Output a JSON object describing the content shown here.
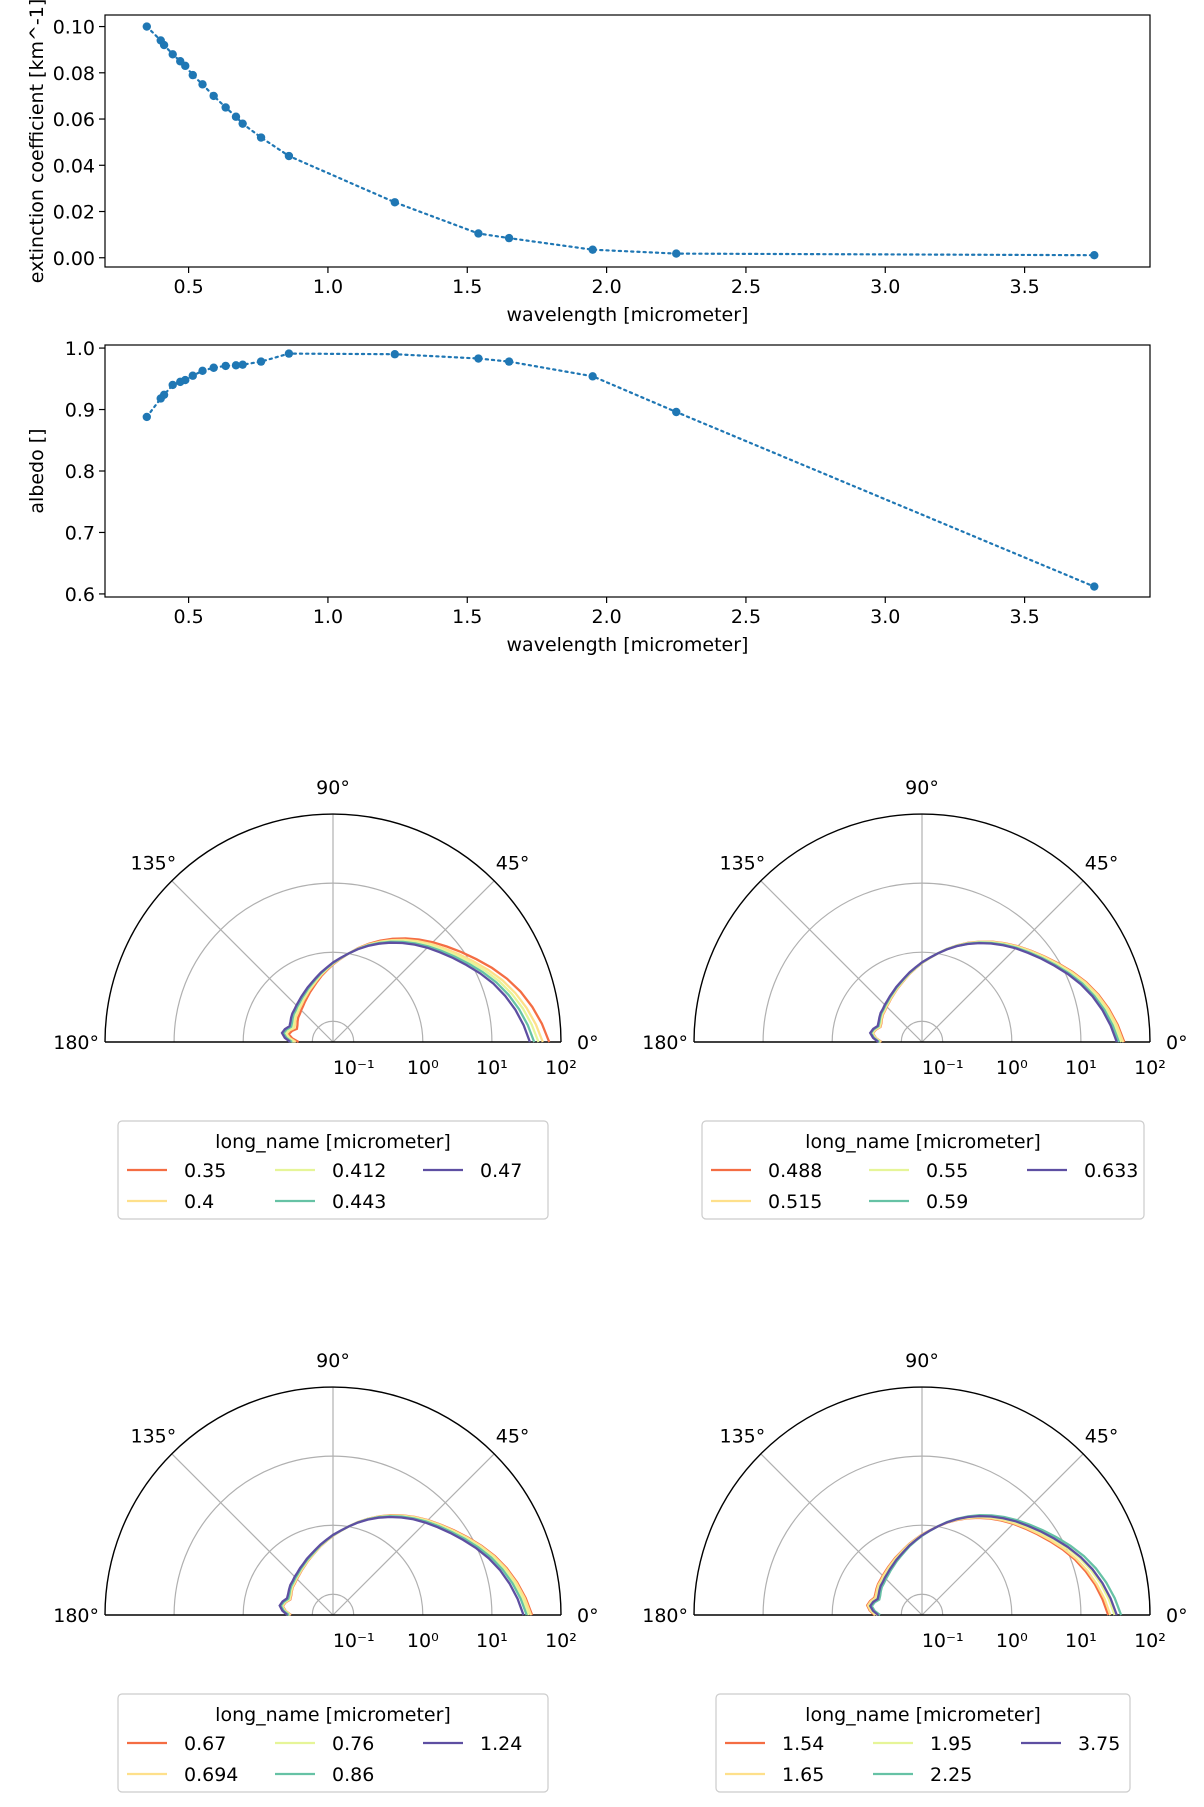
{
  "chart_data": [
    {
      "type": "line",
      "xlabel": "wavelength [micrometer]",
      "ylabel": "extinction coefficient [km^-1]",
      "xlim": [
        0.2,
        3.95
      ],
      "ylim": [
        -0.004,
        0.105
      ],
      "xticks": [
        0.5,
        1.0,
        1.5,
        2.0,
        2.5,
        3.0,
        3.5
      ],
      "xtick_labels": [
        "0.5",
        "1.0",
        "1.5",
        "2.0",
        "2.5",
        "3.0",
        "3.5"
      ],
      "yticks": [
        0.0,
        0.02,
        0.04,
        0.06,
        0.08,
        0.1
      ],
      "ytick_labels": [
        "0.00",
        "0.02",
        "0.04",
        "0.06",
        "0.08",
        "0.10"
      ],
      "line_style": "dotted",
      "color": "#1f77b4",
      "x": [
        0.35,
        0.4,
        0.412,
        0.443,
        0.47,
        0.488,
        0.515,
        0.55,
        0.59,
        0.633,
        0.67,
        0.694,
        0.76,
        0.86,
        1.24,
        1.54,
        1.65,
        1.95,
        2.25,
        3.75
      ],
      "y": [
        0.1,
        0.094,
        0.092,
        0.088,
        0.085,
        0.083,
        0.079,
        0.075,
        0.07,
        0.065,
        0.061,
        0.058,
        0.052,
        0.044,
        0.024,
        0.0105,
        0.0085,
        0.0035,
        0.0018,
        0.0011
      ]
    },
    {
      "type": "line",
      "xlabel": "wavelength [micrometer]",
      "ylabel": "albedo []",
      "xlim": [
        0.2,
        3.95
      ],
      "ylim": [
        0.595,
        1.005
      ],
      "xticks": [
        0.5,
        1.0,
        1.5,
        2.0,
        2.5,
        3.0,
        3.5
      ],
      "xtick_labels": [
        "0.5",
        "1.0",
        "1.5",
        "2.0",
        "2.5",
        "3.0",
        "3.5"
      ],
      "yticks": [
        0.6,
        0.7,
        0.8,
        0.9,
        1.0
      ],
      "ytick_labels": [
        "0.6",
        "0.7",
        "0.8",
        "0.9",
        "1.0"
      ],
      "line_style": "dotted",
      "color": "#1f77b4",
      "x": [
        0.35,
        0.4,
        0.412,
        0.443,
        0.47,
        0.488,
        0.515,
        0.55,
        0.59,
        0.633,
        0.67,
        0.694,
        0.76,
        0.86,
        1.24,
        1.54,
        1.65,
        1.95,
        2.25,
        3.75
      ],
      "y": [
        0.888,
        0.918,
        0.924,
        0.94,
        0.945,
        0.948,
        0.955,
        0.963,
        0.968,
        0.971,
        0.972,
        0.973,
        0.978,
        0.991,
        0.99,
        0.983,
        0.978,
        0.954,
        0.896,
        0.612
      ]
    },
    {
      "type": "polar",
      "angle_ticks": [
        "0°",
        "45°",
        "90°",
        "135°",
        "180°"
      ],
      "radial_scale": "log",
      "radial_ticks": [
        "10⁻¹",
        "10⁰",
        "10¹",
        "10²"
      ],
      "legend_title": "long_name [micrometer]",
      "series": [
        {
          "name": "0.35",
          "color": "#f46d43",
          "scale": 1.18
        },
        {
          "name": "0.4",
          "color": "#fee08b",
          "scale": 1.12
        },
        {
          "name": "0.412",
          "color": "#e6f598",
          "scale": 1.08
        },
        {
          "name": "0.443",
          "color": "#66c2a5",
          "scale": 1.04
        },
        {
          "name": "0.47",
          "color": "#5e4fa2",
          "scale": 1.0
        }
      ]
    },
    {
      "type": "polar",
      "angle_ticks": [
        "0°",
        "45°",
        "90°",
        "135°",
        "180°"
      ],
      "radial_scale": "log",
      "radial_ticks": [
        "10⁻¹",
        "10⁰",
        "10¹",
        "10²"
      ],
      "legend_title": "long_name [micrometer]",
      "series": [
        {
          "name": "0.488",
          "color": "#f46d43",
          "scale": 1.05
        },
        {
          "name": "0.515",
          "color": "#fee08b",
          "scale": 1.04
        },
        {
          "name": "0.55",
          "color": "#e6f598",
          "scale": 1.02
        },
        {
          "name": "0.59",
          "color": "#66c2a5",
          "scale": 1.0
        },
        {
          "name": "0.633",
          "color": "#5e4fa2",
          "scale": 0.98
        }
      ]
    },
    {
      "type": "polar",
      "angle_ticks": [
        "0°",
        "45°",
        "90°",
        "135°",
        "180°"
      ],
      "radial_scale": "log",
      "radial_ticks": [
        "10⁻¹",
        "10⁰",
        "10¹",
        "10²"
      ],
      "legend_title": "long_name [micrometer]",
      "series": [
        {
          "name": "0.67",
          "color": "#f46d43",
          "scale": 1.02
        },
        {
          "name": "0.694",
          "color": "#fee08b",
          "scale": 1.01
        },
        {
          "name": "0.76",
          "color": "#e6f598",
          "scale": 0.99
        },
        {
          "name": "0.86",
          "color": "#66c2a5",
          "scale": 0.97
        },
        {
          "name": "1.24",
          "color": "#5e4fa2",
          "scale": 0.94
        }
      ]
    },
    {
      "type": "polar",
      "angle_ticks": [
        "0°",
        "45°",
        "90°",
        "135°",
        "180°"
      ],
      "radial_scale": "log",
      "radial_ticks": [
        "10⁻¹",
        "10⁰",
        "10¹",
        "10²"
      ],
      "legend_title": "long_name [micrometer]",
      "series": [
        {
          "name": "1.54",
          "color": "#f46d43",
          "scale": 0.9
        },
        {
          "name": "1.65",
          "color": "#fee08b",
          "scale": 0.92
        },
        {
          "name": "1.95",
          "color": "#e6f598",
          "scale": 0.96
        },
        {
          "name": "2.25",
          "color": "#66c2a5",
          "scale": 1.02
        },
        {
          "name": "3.75",
          "color": "#5e4fa2",
          "scale": 0.98
        }
      ]
    }
  ]
}
